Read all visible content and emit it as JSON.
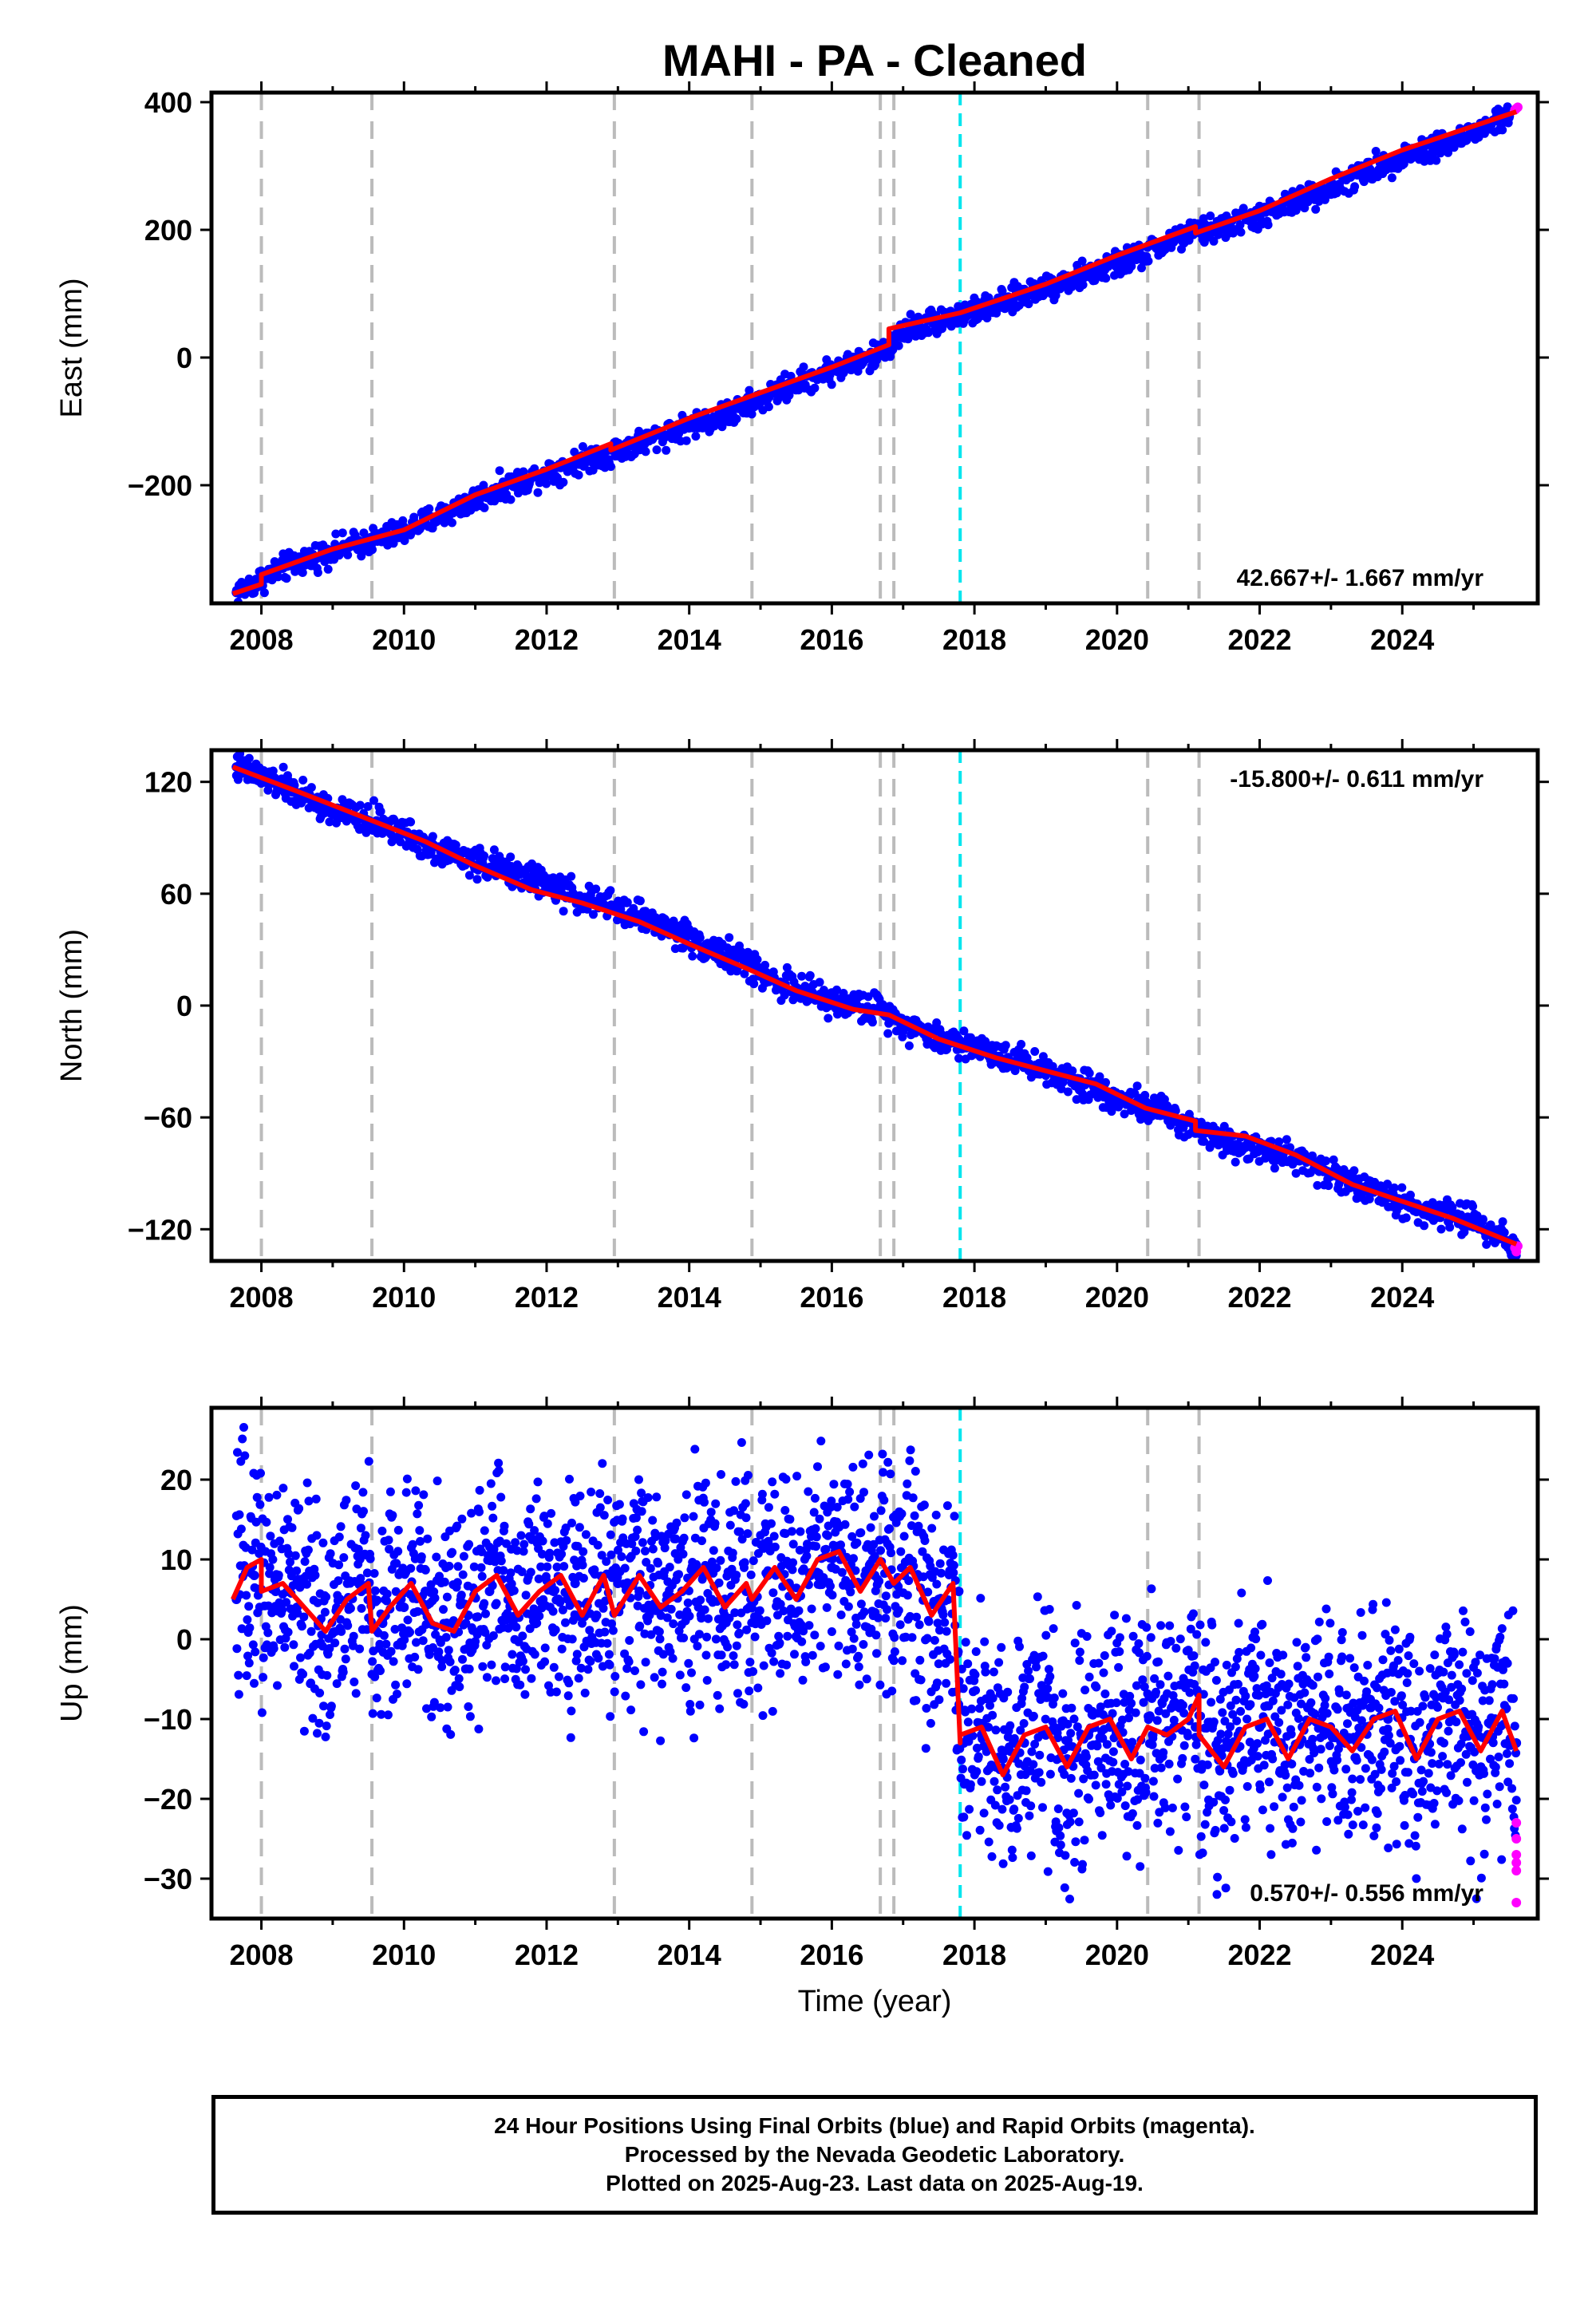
{
  "figure": {
    "title": "MAHI  - PA - Cleaned",
    "xlabel": "Time (year)"
  },
  "colors": {
    "final_orbits": "#0000ff",
    "rapid_orbits": "#ff00ff",
    "model": "#ff0000",
    "event_gray": "#bbbbbb",
    "event_cyan": "#00e5ee"
  },
  "footer": {
    "line1": "24 Hour Positions Using Final Orbits (blue) and Rapid Orbits (magenta).",
    "line2": "Processed by the Nevada Geodetic Laboratory.",
    "line3": "Plotted on 2025-Aug-23. Last data on 2025-Aug-19."
  },
  "chart_data": [
    {
      "type": "scatter",
      "ylabel": "East (mm)",
      "xlim": [
        2007.3,
        2025.9
      ],
      "ylim": [
        -385,
        415
      ],
      "xticks": [
        2008,
        2010,
        2012,
        2014,
        2016,
        2018,
        2020,
        2022,
        2024
      ],
      "yticks": [
        -200,
        0,
        200,
        400
      ],
      "rate_label": "42.667+/- 1.667 mm/yr",
      "rate_position": "bottom-right",
      "events_gray": [
        2008.0,
        2009.55,
        2012.95,
        2014.88,
        2016.68,
        2016.87,
        2020.43,
        2021.15
      ],
      "events_cyan": [
        2017.8
      ],
      "model": {
        "x": [
          2007.6,
          2008.0,
          2008.0,
          2009.0,
          2010.0,
          2011.0,
          2012.0,
          2012.9,
          2012.9,
          2014.0,
          2015.0,
          2016.0,
          2016.8,
          2016.8,
          2017.8,
          2019.0,
          2020.0,
          2021.1,
          2021.1,
          2022.0,
          2023.0,
          2024.0,
          2025.6
        ],
        "y": [
          -370,
          -355,
          -340,
          -300,
          -270,
          -215,
          -175,
          -135,
          -145,
          -95,
          -55,
          -15,
          20,
          45,
          70,
          115,
          160,
          205,
          195,
          230,
          280,
          325,
          385
        ]
      },
      "series": [
        {
          "name": "final",
          "x": [
            2007.65,
            2008.3,
            2009.0,
            2009.8,
            2010.5,
            2011.2,
            2012.0,
            2012.6,
            2013.2,
            2013.9,
            2014.6,
            2015.3,
            2016.0,
            2016.6,
            2017.1,
            2017.6,
            2018.3,
            2018.9,
            2019.6,
            2020.3,
            2020.9,
            2021.5,
            2022.2,
            2022.8,
            2023.5,
            2024.1,
            2024.8,
            2025.5
          ],
          "y": [
            -368,
            -330,
            -302,
            -280,
            -248,
            -212,
            -180,
            -158,
            -138,
            -110,
            -88,
            -50,
            -20,
            0,
            48,
            62,
            80,
            108,
            130,
            158,
            190,
            205,
            228,
            258,
            290,
            320,
            342,
            378
          ],
          "band": 10,
          "dense": true
        },
        {
          "name": "rapid",
          "x": [
            2025.58,
            2025.6,
            2025.62
          ],
          "y": [
            388,
            390,
            392
          ]
        }
      ]
    },
    {
      "type": "scatter",
      "ylabel": "North (mm)",
      "xlim": [
        2007.3,
        2025.9
      ],
      "ylim": [
        -137,
        137
      ],
      "xticks": [
        2008,
        2010,
        2012,
        2014,
        2016,
        2018,
        2020,
        2022,
        2024
      ],
      "yticks": [
        -120,
        -60,
        0,
        60,
        120
      ],
      "rate_label": "-15.800+/- 0.611 mm/yr",
      "rate_position": "top-right",
      "events_gray": [
        2008.0,
        2009.55,
        2012.95,
        2014.88,
        2016.68,
        2016.87,
        2020.43,
        2021.15
      ],
      "events_cyan": [
        2017.8
      ],
      "model": {
        "x": [
          2007.6,
          2008.5,
          2009.5,
          2010.3,
          2011.0,
          2011.8,
          2012.5,
          2013.3,
          2014.0,
          2014.8,
          2015.5,
          2016.3,
          2016.8,
          2017.5,
          2018.3,
          2019.0,
          2019.7,
          2020.4,
          2021.1,
          2021.1,
          2021.8,
          2022.5,
          2023.3,
          2024.0,
          2024.7,
          2025.6
        ],
        "y": [
          128,
          115,
          100,
          88,
          75,
          62,
          55,
          45,
          33,
          20,
          8,
          -2,
          -5,
          -18,
          -28,
          -35,
          -42,
          -55,
          -62,
          -67,
          -70,
          -80,
          -96,
          -105,
          -114,
          -128
        ]
      },
      "series": [
        {
          "name": "final",
          "x": [
            2007.65,
            2008.3,
            2009.0,
            2009.7,
            2010.4,
            2011.1,
            2011.8,
            2012.5,
            2013.2,
            2013.9,
            2014.6,
            2015.3,
            2016.0,
            2016.7,
            2017.3,
            2018.0,
            2018.7,
            2019.4,
            2020.1,
            2020.8,
            2021.5,
            2022.2,
            2022.9,
            2023.6,
            2024.3,
            2025.0,
            2025.6
          ],
          "y": [
            128,
            118,
            104,
            98,
            85,
            76,
            68,
            57,
            50,
            38,
            26,
            12,
            2,
            -2,
            -15,
            -22,
            -30,
            -40,
            -50,
            -60,
            -72,
            -78,
            -88,
            -100,
            -110,
            -115,
            -128
          ],
          "band": 4,
          "dense": true
        },
        {
          "name": "rapid",
          "x": [
            2025.58,
            2025.6,
            2025.62
          ],
          "y": [
            -130,
            -132,
            -129
          ]
        }
      ]
    },
    {
      "type": "scatter",
      "ylabel": "Up (mm)",
      "xlim": [
        2007.3,
        2025.9
      ],
      "ylim": [
        -35,
        29
      ],
      "xticks": [
        2008,
        2010,
        2012,
        2014,
        2016,
        2018,
        2020,
        2022,
        2024
      ],
      "yticks": [
        -30,
        -20,
        -10,
        0,
        10,
        20
      ],
      "rate_label": "0.570+/- 0.556 mm/yr",
      "rate_position": "bottom-right",
      "events_gray": [
        2008.0,
        2009.55,
        2012.95,
        2014.88,
        2016.68,
        2016.87,
        2020.43,
        2021.15
      ],
      "events_cyan": [
        2017.8
      ],
      "model": {
        "x": [
          2007.6,
          2007.8,
          2008.0,
          2008.0,
          2008.3,
          2008.6,
          2008.9,
          2009.2,
          2009.5,
          2009.55,
          2009.8,
          2010.1,
          2010.4,
          2010.7,
          2011.0,
          2011.3,
          2011.6,
          2011.9,
          2012.2,
          2012.5,
          2012.8,
          2012.95,
          2013.3,
          2013.6,
          2013.9,
          2014.2,
          2014.5,
          2014.8,
          2014.88,
          2015.2,
          2015.5,
          2015.8,
          2016.1,
          2016.4,
          2016.68,
          2016.87,
          2017.1,
          2017.4,
          2017.7,
          2017.8,
          2017.8,
          2018.1,
          2018.4,
          2018.7,
          2019.0,
          2019.3,
          2019.6,
          2019.9,
          2020.2,
          2020.43,
          2020.7,
          2021.0,
          2021.15,
          2021.15,
          2021.5,
          2021.8,
          2022.1,
          2022.4,
          2022.7,
          2023.0,
          2023.3,
          2023.6,
          2023.9,
          2024.2,
          2024.5,
          2024.8,
          2025.1,
          2025.4,
          2025.6
        ],
        "y": [
          5,
          9,
          10,
          6,
          7,
          4,
          1,
          5,
          7,
          1,
          4,
          7,
          2,
          1,
          6,
          8,
          3,
          6,
          8,
          3,
          8,
          3,
          8,
          4,
          6,
          9,
          4,
          7,
          5,
          9,
          5,
          10,
          11,
          6,
          10,
          7,
          9,
          3,
          7,
          -13,
          -12,
          -11,
          -17,
          -12,
          -11,
          -16,
          -11,
          -10,
          -15,
          -11,
          -12,
          -10,
          -7,
          -12,
          -16,
          -11,
          -10,
          -15,
          -10,
          -11,
          -14,
          -10,
          -9,
          -15,
          -10,
          -9,
          -14,
          -9,
          -14
        ]
      },
      "series": [
        {
          "name": "final",
          "x": [
            2007.65,
            2007.9,
            2008.2,
            2008.5,
            2008.8,
            2009.1,
            2009.4,
            2009.7,
            2010.0,
            2010.3,
            2010.6,
            2010.9,
            2011.2,
            2011.5,
            2011.8,
            2012.1,
            2012.4,
            2012.7,
            2013.0,
            2013.3,
            2013.6,
            2013.9,
            2014.2,
            2014.5,
            2014.8,
            2015.1,
            2015.4,
            2015.7,
            2016.0,
            2016.3,
            2016.6,
            2016.9,
            2017.2,
            2017.5,
            2017.78,
            2017.85,
            2018.1,
            2018.4,
            2018.7,
            2019.0,
            2019.3,
            2019.6,
            2019.9,
            2020.2,
            2020.5,
            2020.8,
            2021.1,
            2021.4,
            2021.7,
            2022.0,
            2022.3,
            2022.6,
            2022.9,
            2023.2,
            2023.5,
            2023.8,
            2024.1,
            2024.4,
            2024.7,
            2025.0,
            2025.3,
            2025.6
          ],
          "y": [
            5,
            8,
            6,
            4,
            2,
            5,
            6,
            2,
            4,
            6,
            2,
            3,
            6,
            6,
            3,
            6,
            7,
            3,
            7,
            6,
            4,
            6,
            8,
            5,
            6,
            8,
            7,
            8,
            9,
            7,
            8,
            7,
            8,
            5,
            6,
            -13,
            -12,
            -15,
            -13,
            -12,
            -15,
            -12,
            -11,
            -14,
            -12,
            -11,
            -11,
            -14,
            -12,
            -11,
            -13,
            -11,
            -12,
            -13,
            -11,
            -10,
            -13,
            -11,
            -10,
            -12,
            -10,
            -13
          ],
          "band": 7,
          "dense": true
        },
        {
          "name": "rapid",
          "x": [
            2025.6,
            2025.6,
            2025.6,
            2025.6,
            2025.6,
            2025.6
          ],
          "y": [
            -23,
            -25,
            -27,
            -28,
            -29,
            -33
          ]
        }
      ]
    }
  ]
}
